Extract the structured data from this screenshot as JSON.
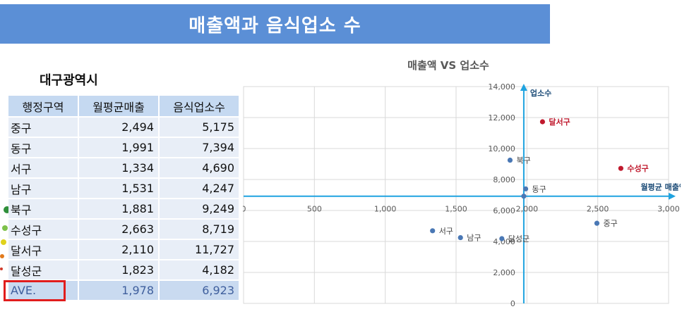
{
  "header": {
    "title": "매출액과 음식업소 수"
  },
  "region": "대구광역시",
  "table": {
    "columns": [
      "행정구역",
      "월평균매출",
      "음식업소수"
    ],
    "rows": [
      [
        "중구",
        "2,494",
        "5,175"
      ],
      [
        "동구",
        "1,991",
        "7,394"
      ],
      [
        "서구",
        "1,334",
        "4,690"
      ],
      [
        "남구",
        "1,531",
        "4,247"
      ],
      [
        "북구",
        "1,881",
        "9,249"
      ],
      [
        "수성구",
        "2,663",
        "8,719"
      ],
      [
        "달서구",
        "2,110",
        "11,727"
      ],
      [
        "달성군",
        "1,823",
        "4,182"
      ]
    ],
    "average": [
      "AVE.",
      "1,978",
      "6,923"
    ]
  },
  "chart_data": {
    "type": "scatter",
    "title": "매출액 VS  업소수",
    "xlabel": "월평균 매출액",
    "ylabel": "업소수",
    "xlim": [
      0,
      3000
    ],
    "ylim": [
      0,
      14000
    ],
    "xticks": [
      0,
      500,
      1000,
      1500,
      2000,
      2500,
      3000
    ],
    "yticks": [
      0,
      2000,
      4000,
      6000,
      8000,
      10000,
      12000,
      14000
    ],
    "xtick_labels": [
      "0",
      "500",
      "1,000",
      "1,500",
      "2,000",
      "2,500",
      "3,000"
    ],
    "ytick_labels": [
      "0",
      "2,000",
      "4,000",
      "6,000",
      "8,000",
      "10,000",
      "12,000",
      "14,000"
    ],
    "grid": true,
    "crosshair": {
      "x": 1978,
      "y": 6923
    },
    "points": [
      {
        "label": "중구",
        "x": 2494,
        "y": 5175,
        "highlight": false
      },
      {
        "label": "동구",
        "x": 1991,
        "y": 7394,
        "highlight": false
      },
      {
        "label": "서구",
        "x": 1334,
        "y": 4690,
        "highlight": false
      },
      {
        "label": "남구",
        "x": 1531,
        "y": 4247,
        "highlight": false
      },
      {
        "label": "북구",
        "x": 1881,
        "y": 9249,
        "highlight": false
      },
      {
        "label": "수성구",
        "x": 2663,
        "y": 8719,
        "highlight": true
      },
      {
        "label": "달서구",
        "x": 2110,
        "y": 11727,
        "highlight": true
      },
      {
        "label": "달성군",
        "x": 1823,
        "y": 4182,
        "highlight": false
      },
      {
        "label": "",
        "x": 1978,
        "y": 6923,
        "highlight": false
      }
    ],
    "colors": {
      "point": "#4a78b5",
      "highlight": "#c0192d",
      "axis": "#1fa3e0",
      "grid": "#d9d9d9",
      "tick": "#595959",
      "axis_title": "#1f4e79"
    }
  }
}
